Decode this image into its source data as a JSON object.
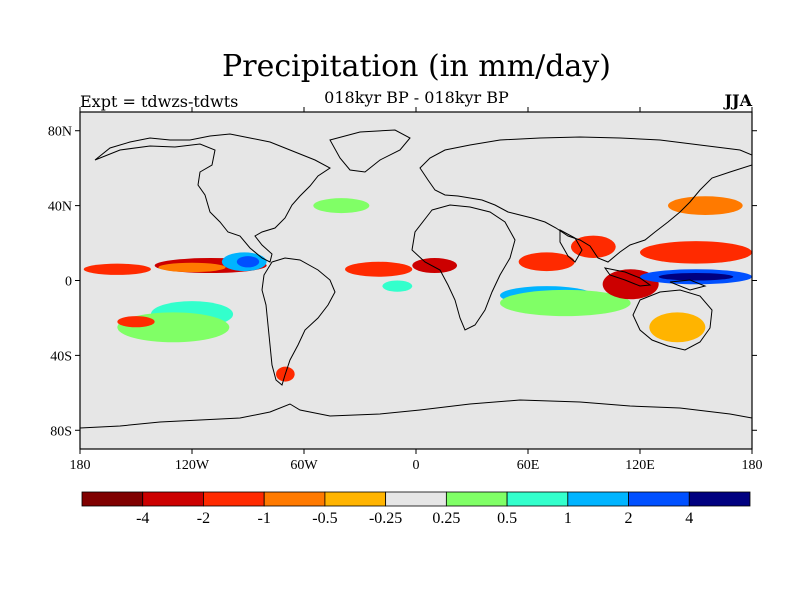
{
  "title": "Precipitation (in mm/day)",
  "subtitle": "018kyr BP - 018kyr BP",
  "left_label": "Expt = tdwzs-tdwts",
  "right_label": "JJA",
  "map": {
    "projection": "cylindrical-equidistant",
    "lon_range": [
      -180,
      180
    ],
    "lat_range": [
      -90,
      90
    ],
    "background_color": "#e6e6e6",
    "lat_ticks": [
      {
        "value": 80,
        "label": "80N"
      },
      {
        "value": 40,
        "label": "40N"
      },
      {
        "value": 0,
        "label": "0"
      },
      {
        "value": -40,
        "label": "40S"
      },
      {
        "value": -80,
        "label": "80S"
      }
    ],
    "lon_ticks": [
      {
        "value": -180,
        "label": "180"
      },
      {
        "value": -120,
        "label": "120W"
      },
      {
        "value": -60,
        "label": "60W"
      },
      {
        "value": 0,
        "label": "0"
      },
      {
        "value": 60,
        "label": "60E"
      },
      {
        "value": 120,
        "label": "120E"
      },
      {
        "value": 180,
        "label": "180"
      }
    ]
  },
  "colorbar": {
    "colors": [
      "#800000",
      "#cc0000",
      "#ff2a00",
      "#ff7a00",
      "#ffb400",
      "#e6e6e6",
      "#80ff66",
      "#33ffcc",
      "#00b4ff",
      "#0050ff",
      "#000080"
    ],
    "labels": [
      "-4",
      "-2",
      "-1",
      "-0.5",
      "-0.25",
      "0.25",
      "0.5",
      "1",
      "2",
      "4"
    ]
  },
  "anomalies": [
    {
      "name": "east-pacific-itcz-positive",
      "lon": -110,
      "lat": 8,
      "rlon": 30,
      "rlat": 4,
      "level": 1
    },
    {
      "name": "east-pacific-itcz-strong",
      "lon": -120,
      "lat": 7,
      "rlon": 18,
      "rlat": 2.5,
      "level": 3
    },
    {
      "name": "central-pacific-itcz",
      "lon": -160,
      "lat": 6,
      "rlon": 18,
      "rlat": 3,
      "level": 2
    },
    {
      "name": "central-america-negative",
      "lon": -92,
      "lat": 10,
      "rlon": 12,
      "rlat": 5,
      "level": 8
    },
    {
      "name": "central-america-core",
      "lon": -90,
      "lat": 10,
      "rlon": 6,
      "rlat": 3,
      "level": 9
    },
    {
      "name": "south-pacific-cyan",
      "lon": -120,
      "lat": -18,
      "rlon": 22,
      "rlat": 7,
      "level": 7
    },
    {
      "name": "south-pacific-green",
      "lon": -130,
      "lat": -25,
      "rlon": 30,
      "rlat": 8,
      "level": 6
    },
    {
      "name": "south-pacific-red",
      "lon": -150,
      "lat": -22,
      "rlon": 10,
      "rlat": 3,
      "level": 2
    },
    {
      "name": "south-america-tip",
      "lon": -70,
      "lat": -50,
      "rlon": 5,
      "rlat": 4,
      "level": 2
    },
    {
      "name": "atlantic-itcz-positive",
      "lon": -20,
      "lat": 6,
      "rlon": 18,
      "rlat": 4,
      "level": 2
    },
    {
      "name": "west-africa-positive",
      "lon": 10,
      "lat": 8,
      "rlon": 12,
      "rlat": 4,
      "level": 1
    },
    {
      "name": "equatorial-atlantic-negative",
      "lon": -10,
      "lat": -3,
      "rlon": 8,
      "rlat": 3,
      "level": 7
    },
    {
      "name": "indian-ocean-negative",
      "lon": 70,
      "lat": -8,
      "rlon": 25,
      "rlat": 5,
      "level": 8
    },
    {
      "name": "indian-ocean-green",
      "lon": 80,
      "lat": -12,
      "rlon": 35,
      "rlat": 7,
      "level": 6
    },
    {
      "name": "arabian-sea-positive",
      "lon": 70,
      "lat": 10,
      "rlon": 15,
      "rlat": 5,
      "level": 2
    },
    {
      "name": "bay-of-bengal-positive",
      "lon": 95,
      "lat": 18,
      "rlon": 12,
      "rlat": 6,
      "level": 2
    },
    {
      "name": "maritime-continent-strong",
      "lon": 115,
      "lat": -2,
      "rlon": 15,
      "rlat": 8,
      "level": 1
    },
    {
      "name": "west-pacific-negative",
      "lon": 150,
      "lat": 2,
      "rlon": 30,
      "rlat": 4,
      "level": 9
    },
    {
      "name": "west-pacific-deep",
      "lon": 150,
      "lat": 2,
      "rlon": 20,
      "rlat": 2,
      "level": 10
    },
    {
      "name": "northwest-pacific-positive",
      "lon": 150,
      "lat": 15,
      "rlon": 30,
      "rlat": 6,
      "level": 2
    },
    {
      "name": "east-asia-positive",
      "lon": 155,
      "lat": 40,
      "rlon": 20,
      "rlat": 5,
      "level": 3
    },
    {
      "name": "north-atlantic-green",
      "lon": -40,
      "lat": 40,
      "rlon": 15,
      "rlat": 4,
      "level": 6
    },
    {
      "name": "australia-south-positive",
      "lon": 140,
      "lat": -25,
      "rlon": 15,
      "rlat": 8,
      "level": 4
    }
  ]
}
